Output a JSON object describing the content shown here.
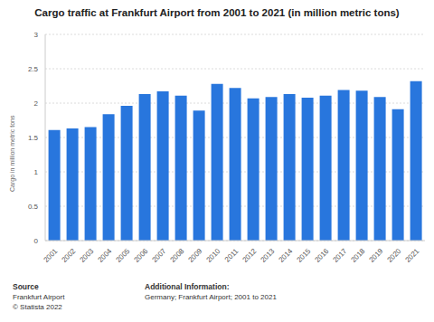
{
  "chart_data": {
    "type": "bar",
    "title": "Cargo traffic at Frankfurt Airport from 2001 to 2021 (in million metric tons)",
    "y_label": "Cargo in million metric tons",
    "categories": [
      "2001",
      "2002",
      "2003",
      "2004",
      "2005",
      "2006",
      "2007",
      "2008",
      "2009",
      "2010",
      "2011",
      "2012",
      "2013",
      "2014",
      "2015",
      "2016",
      "2017",
      "2018",
      "2019",
      "2020",
      "2021"
    ],
    "values": [
      1.61,
      1.63,
      1.65,
      1.84,
      1.96,
      2.13,
      2.17,
      2.11,
      1.89,
      2.28,
      2.22,
      2.07,
      2.09,
      2.13,
      2.08,
      2.11,
      2.19,
      2.18,
      2.09,
      1.91,
      2.32
    ],
    "color": "#2876dd",
    "ylim": [
      0,
      3
    ],
    "yticks": [
      0,
      0.5,
      1,
      1.5,
      2,
      2.5,
      3
    ],
    "grid": true,
    "annotations": [
      "Source",
      "Frankfurt Airport",
      "© Statista 2022",
      "Additional Information:",
      "Germany; Frankfurt Airport; 2001 to 2021"
    ]
  }
}
